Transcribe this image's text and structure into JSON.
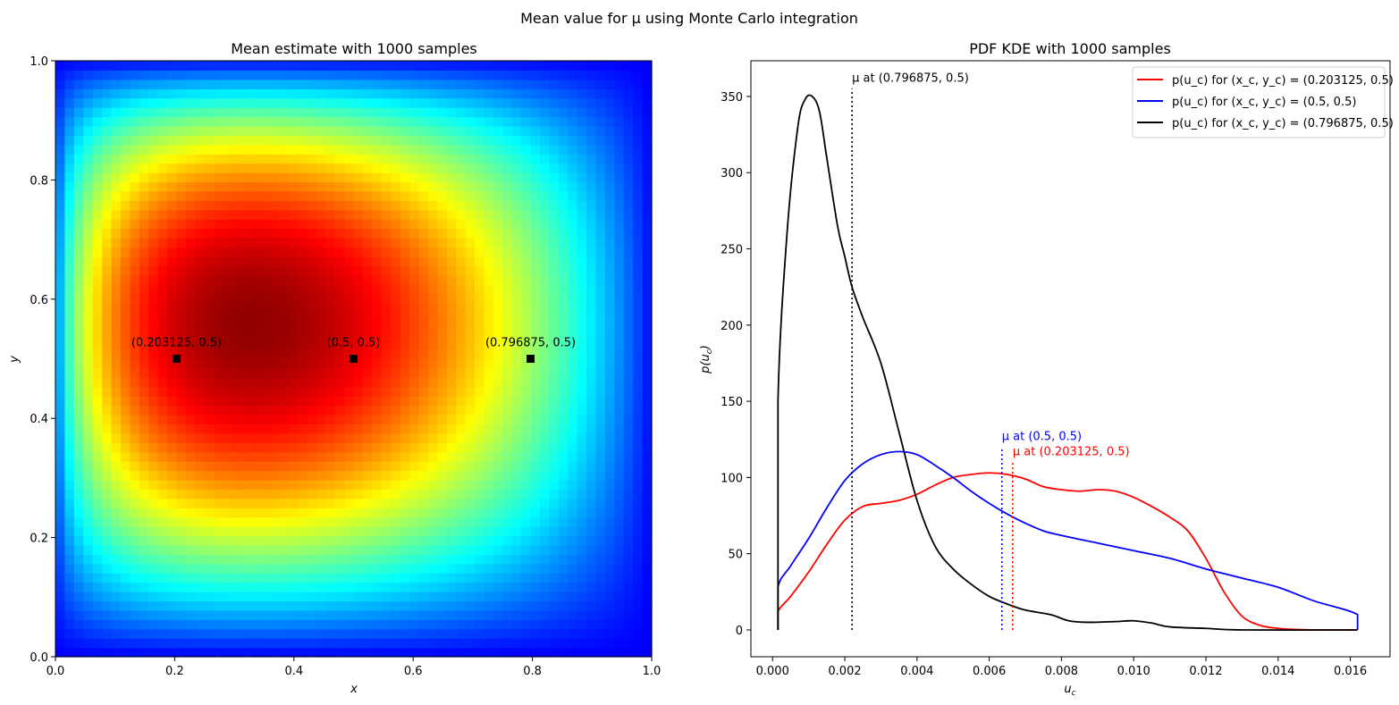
{
  "suptitle": "Mean value for μ using Monte Carlo integration",
  "chart_data": [
    {
      "type": "heatmap",
      "title": "Mean estimate with 1000 samples",
      "xlabel": "x",
      "ylabel": "y",
      "xlim": [
        0,
        1
      ],
      "ylim": [
        0,
        1
      ],
      "xticks": [
        "0.0",
        "0.2",
        "0.4",
        "0.6",
        "0.8",
        "1.0"
      ],
      "yticks": [
        "0.0",
        "0.2",
        "0.4",
        "0.6",
        "0.8",
        "1.0"
      ],
      "colormap": "jet",
      "grid_resolution": 64,
      "peak_location": [
        0.33,
        0.56
      ],
      "points": [
        {
          "x": 0.203125,
          "y": 0.5,
          "label": "(0.203125, 0.5)"
        },
        {
          "x": 0.5,
          "y": 0.5,
          "label": "(0.5, 0.5)"
        },
        {
          "x": 0.796875,
          "y": 0.5,
          "label": "(0.796875, 0.5)"
        }
      ],
      "marker_color": "#000000"
    },
    {
      "type": "line",
      "title": "PDF KDE with 1000 samples",
      "xlabel": "u_c",
      "ylabel": "p(u_c)",
      "xlim": [
        -0.0006,
        0.0171
      ],
      "ylim": [
        -17.6,
        373.4
      ],
      "xticks": [
        "0.000",
        "0.002",
        "0.004",
        "0.006",
        "0.008",
        "0.010",
        "0.012",
        "0.014",
        "0.016"
      ],
      "yticks": [
        "0",
        "50",
        "100",
        "150",
        "200",
        "250",
        "300",
        "350"
      ],
      "legend": "top-right",
      "series": [
        {
          "name": "p(u_c) for (x_c, y_c) = (0.203125, 0.5)",
          "color": "#ff0000",
          "x": [
            0.00015,
            0.00015,
            0.0005,
            0.001,
            0.0015,
            0.002,
            0.0025,
            0.003,
            0.0035,
            0.004,
            0.0045,
            0.005,
            0.0055,
            0.006,
            0.0065,
            0.007,
            0.0075,
            0.008,
            0.0085,
            0.009,
            0.0095,
            0.01,
            0.0105,
            0.011,
            0.0115,
            0.012,
            0.0125,
            0.013,
            0.0135,
            0.014,
            0.0145,
            0.015,
            0.0162
          ],
          "y": [
            0,
            12,
            22,
            38,
            56,
            72,
            81,
            83,
            85,
            89,
            95,
            100,
            102,
            103,
            102,
            99,
            94,
            92,
            91,
            92,
            91,
            87,
            81,
            74,
            65,
            47,
            25,
            9,
            3,
            1,
            0.3,
            0,
            0
          ]
        },
        {
          "name": "p(u_c) for (x_c, y_c) = (0.5, 0.5)",
          "color": "#0000ff",
          "x": [
            0.00015,
            0.00015,
            0.0005,
            0.001,
            0.0015,
            0.002,
            0.0025,
            0.003,
            0.0035,
            0.004,
            0.0045,
            0.005,
            0.0055,
            0.006,
            0.0065,
            0.007,
            0.0075,
            0.008,
            0.009,
            0.01,
            0.011,
            0.012,
            0.013,
            0.014,
            0.015,
            0.0162,
            0.0162
          ],
          "y": [
            0,
            28,
            42,
            60,
            80,
            98,
            109,
            115,
            117,
            115,
            108,
            100,
            91,
            83,
            76,
            70,
            65,
            62,
            57,
            52,
            47,
            40,
            34,
            28,
            19,
            10,
            0
          ]
        },
        {
          "name": "p(u_c) for (x_c, y_c) = (0.796875, 0.5)",
          "color": "#000000",
          "x": [
            0.00015,
            0.00015,
            0.0004,
            0.0007,
            0.0009,
            0.0011,
            0.0013,
            0.0015,
            0.0018,
            0.002,
            0.0022,
            0.0025,
            0.003,
            0.0035,
            0.004,
            0.0045,
            0.005,
            0.0055,
            0.006,
            0.0065,
            0.007,
            0.0077,
            0.0082,
            0.0087,
            0.0095,
            0.01,
            0.0105,
            0.011,
            0.012,
            0.013,
            0.0162
          ],
          "y": [
            0,
            150,
            260,
            330,
            348,
            350,
            340,
            310,
            265,
            245,
            225,
            205,
            175,
            130,
            85,
            55,
            40,
            30,
            22,
            17,
            13,
            10,
            6,
            5,
            5.5,
            6,
            4.5,
            2,
            1,
            0,
            0
          ]
        }
      ],
      "vlines": [
        {
          "x": 0.0022,
          "top": 355,
          "color": "#000000",
          "label": "μ at (0.796875, 0.5)"
        },
        {
          "x": 0.00635,
          "top": 120,
          "color": "#0000ff",
          "label": "μ at (0.5, 0.5)"
        },
        {
          "x": 0.00665,
          "top": 110,
          "color": "#ff0000",
          "label": "μ at (0.203125, 0.5)"
        }
      ]
    }
  ]
}
